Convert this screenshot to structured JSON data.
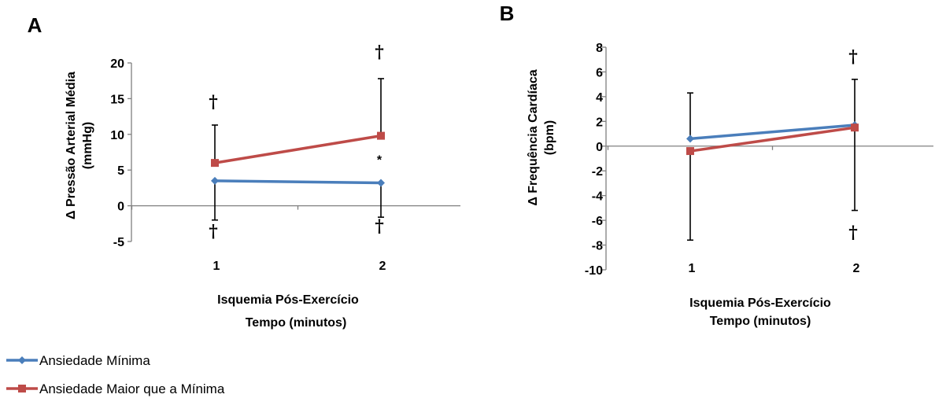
{
  "chart_data": [
    {
      "type": "line",
      "panel_label": "A",
      "ylabel_lines": [
        "Δ Pressão Arterial Média",
        "(mmHg)"
      ],
      "xlabel_lines": [
        "Isquemia Pós-Exercício",
        "Tempo (minutos)"
      ],
      "categories": [
        "1",
        "2"
      ],
      "ylim": [
        -5,
        20
      ],
      "yticks": [
        -5,
        0,
        5,
        10,
        15,
        20
      ],
      "series": [
        {
          "name": "Ansiedade Mínima",
          "color": "#4a7ebb",
          "marker": "diamond",
          "values": [
            3.5,
            3.2
          ],
          "error_minus": [
            5.5,
            4.8
          ],
          "error_plus": [
            0,
            0
          ]
        },
        {
          "name": "Ansiedade Maior que a Mínima",
          "color": "#be4b48",
          "marker": "square",
          "values": [
            6.0,
            9.8
          ],
          "error_minus": [
            0,
            0
          ],
          "error_plus": [
            5.3,
            8.0
          ]
        }
      ],
      "annotations": [
        {
          "text": "†",
          "category": 0,
          "y": 14.5
        },
        {
          "text": "†",
          "category": 0,
          "y": -3.6
        },
        {
          "text": "†",
          "category": 1,
          "y": 21.5
        },
        {
          "text": "*",
          "category": 1,
          "y": 6.6
        },
        {
          "text": "†",
          "category": 1,
          "y": -2.9
        }
      ]
    },
    {
      "type": "line",
      "panel_label": "B",
      "ylabel_lines": [
        "Δ Frequência Cardíaca",
        "(bpm)"
      ],
      "xlabel_lines": [
        "Isquemia Pós-Exercício",
        "Tempo (minutos)"
      ],
      "categories": [
        "1",
        "2"
      ],
      "ylim": [
        -10,
        8
      ],
      "yticks": [
        -10,
        -8,
        -6,
        -4,
        -2,
        0,
        2,
        4,
        6,
        8
      ],
      "series": [
        {
          "name": "Ansiedade Mínima",
          "color": "#4a7ebb",
          "marker": "diamond",
          "values": [
            0.6,
            1.7
          ],
          "error_minus": [
            0,
            0
          ],
          "error_plus": [
            3.7,
            3.7
          ]
        },
        {
          "name": "Ansiedade Maior que a Mínima",
          "color": "#be4b48",
          "marker": "square",
          "values": [
            -0.4,
            1.5
          ],
          "error_minus": [
            7.2,
            6.7
          ],
          "error_plus": [
            0,
            0
          ]
        }
      ],
      "annotations": [
        {
          "text": "†",
          "category": 1,
          "y": 7.2
        },
        {
          "text": "†",
          "category": 1,
          "y": -7.0
        }
      ]
    }
  ],
  "legend": [
    {
      "label": "Ansiedade Mínima",
      "color": "#4a7ebb",
      "marker": "diamond"
    },
    {
      "label": "Ansiedade Maior que a Mínima",
      "color": "#be4b48",
      "marker": "square"
    }
  ]
}
